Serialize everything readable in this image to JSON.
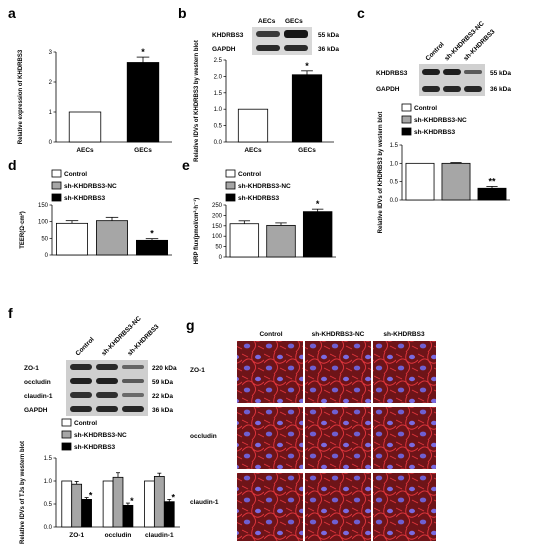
{
  "panels": {
    "a": "a",
    "b": "b",
    "c": "c",
    "d": "d",
    "e": "e",
    "f": "f",
    "g": "g"
  },
  "legend": {
    "control": "Control",
    "nc": "sh-KHDRBS3-NC",
    "sh": "sh-KHDRBS3"
  },
  "colors": {
    "control": "#ffffff",
    "nc": "#a6a6a6",
    "sh": "#000000",
    "if_bg": "#6e1418",
    "nuclei": "#6f5fd0"
  },
  "blots": {
    "b": {
      "cols": [
        "AECs",
        "GECs"
      ],
      "rows": [
        "KHDRBS3",
        "GAPDH"
      ],
      "kda": [
        "55 kDa",
        "36 kDa"
      ]
    },
    "c": {
      "cols": [
        "Control",
        "sh-KHDRBS3-NC",
        "sh-KHDRBS3"
      ],
      "rows": [
        "KHDRBS3",
        "GAPDH"
      ],
      "kda": [
        "55 kDa",
        "36 kDa"
      ]
    },
    "f": {
      "cols": [
        "Control",
        "sh-KHDRBS3-NC",
        "sh-KHDRBS3"
      ],
      "rows": [
        "ZO-1",
        "occludin",
        "claudin-1",
        "GAPDH"
      ],
      "kda": [
        "220 kDa",
        "59 kDa",
        "22 kDa",
        "36 kDa"
      ]
    }
  },
  "if_images": {
    "cols": [
      "Control",
      "sh-KHDRBS3-NC",
      "sh-KHDRBS3"
    ],
    "rows": [
      "ZO-1",
      "occludin",
      "claudin-1"
    ]
  },
  "chart_data": [
    {
      "panel": "a",
      "type": "bar",
      "categories": [
        "AECs",
        "GECs"
      ],
      "values": [
        1.0,
        2.65
      ],
      "errors": [
        0,
        0.18
      ],
      "ylabel": "Relative expression of KHDRBS3",
      "ylim": [
        0,
        3
      ],
      "yticks": [
        "0",
        "1",
        "2",
        "3"
      ],
      "sig": [
        "",
        "*"
      ]
    },
    {
      "panel": "b",
      "type": "bar",
      "categories": [
        "AECs",
        "GECs"
      ],
      "values": [
        1.0,
        2.05
      ],
      "errors": [
        0,
        0.12
      ],
      "ylabel": "Relative IDVs of KHDRBS3 by western blot",
      "ylim": [
        0,
        2.5
      ],
      "yticks": [
        "0.0",
        "0.5",
        "1.0",
        "1.5",
        "2.0",
        "2.5"
      ],
      "sig": [
        "",
        "*"
      ]
    },
    {
      "panel": "c",
      "type": "bar",
      "categories": [
        "Control",
        "sh-KHDRBS3-NC",
        "sh-KHDRBS3"
      ],
      "values": [
        1.0,
        1.0,
        0.32
      ],
      "errors": [
        0,
        0.02,
        0.05
      ],
      "ylabel": "Relative IDVs of KHDRBS3 by western blot",
      "ylim": [
        0,
        1.5
      ],
      "yticks": [
        "0.0",
        "0.5",
        "1.0",
        "1.5"
      ],
      "sig": [
        "",
        "",
        "**"
      ]
    },
    {
      "panel": "d",
      "type": "bar",
      "categories": [
        "Control",
        "sh-KHDRBS3-NC",
        "sh-KHDRBS3"
      ],
      "values": [
        95,
        103,
        44
      ],
      "errors": [
        8,
        10,
        5
      ],
      "ylabel": "TEER(Ω·cm²)",
      "ylim": [
        0,
        150
      ],
      "yticks": [
        "0",
        "50",
        "100",
        "150"
      ],
      "sig": [
        "",
        "",
        "*"
      ]
    },
    {
      "panel": "e",
      "type": "bar",
      "categories": [
        "Control",
        "sh-KHDRBS3-NC",
        "sh-KHDRBS3"
      ],
      "values": [
        160,
        152,
        218
      ],
      "errors": [
        14,
        12,
        12
      ],
      "ylabel": "HRP flux(pmol/cm²·h⁻¹)",
      "ylim": [
        0,
        250
      ],
      "yticks": [
        "0",
        "50",
        "100",
        "150",
        "200",
        "250"
      ],
      "sig": [
        "",
        "",
        "*"
      ]
    },
    {
      "panel": "f",
      "type": "bar",
      "categories": [
        "ZO-1",
        "occludin",
        "claudin-1"
      ],
      "series": [
        {
          "name": "Control",
          "values": [
            1.0,
            1.0,
            1.0
          ],
          "errors": [
            0,
            0,
            0
          ]
        },
        {
          "name": "sh-KHDRBS3-NC",
          "values": [
            0.93,
            1.08,
            1.1
          ],
          "errors": [
            0.06,
            0.1,
            0.07
          ]
        },
        {
          "name": "sh-KHDRBS3",
          "values": [
            0.6,
            0.47,
            0.55
          ],
          "errors": [
            0.04,
            0.05,
            0.05
          ]
        }
      ],
      "ylabel": "Relative IDVs of TJs by western blot",
      "ylim": [
        0,
        1.5
      ],
      "yticks": [
        "0.0",
        "0.5",
        "1.0",
        "1.5"
      ],
      "sig": [
        "*",
        "*",
        "*"
      ]
    }
  ]
}
